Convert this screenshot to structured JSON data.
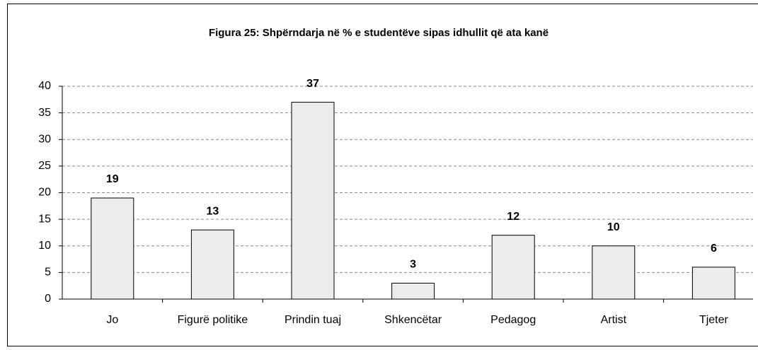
{
  "chart_data": {
    "type": "bar",
    "title": "Figura 25: Shpërndarja në % e studentëve sipas idhullit që ata kanë",
    "categories": [
      "Jo",
      "Figurë politike",
      "Prindin tuaj",
      "Shkencëtar",
      "Pedagog",
      "Artist",
      "Tjeter"
    ],
    "values": [
      19,
      13,
      37,
      3,
      12,
      10,
      6
    ],
    "color": "#ececec",
    "ylim": [
      0,
      40
    ],
    "yticks": [
      0,
      5,
      10,
      15,
      20,
      25,
      30,
      35,
      40
    ],
    "grid": true
  }
}
